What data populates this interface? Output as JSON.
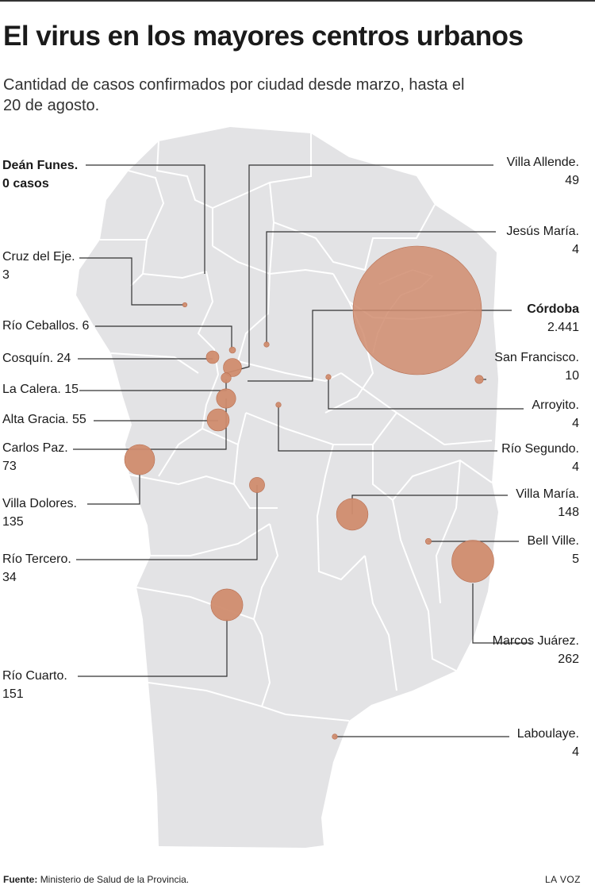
{
  "header": {
    "title": "El virus en los mayores centros urbanos",
    "subtitle": "Cantidad de casos confirmados por ciudad desde marzo, hasta el 20 de agosto."
  },
  "colors": {
    "map_fill": "#e3e3e5",
    "border": "#ffffff",
    "bubble": "#d08c6e",
    "bubble_stroke": "#b86f52",
    "leader": "#333333"
  },
  "cities": [
    {
      "id": "dean-funes",
      "name": "Deán Funes.",
      "value_text": "0 casos",
      "cases": 0
    },
    {
      "id": "villa-allende",
      "name": "Villa Allende.",
      "value_text": "49",
      "cases": 49
    },
    {
      "id": "cruz-del-eje",
      "name": "Cruz del Eje.",
      "value_text": "3",
      "cases": 3
    },
    {
      "id": "jesus-maria",
      "name": "Jesús María.",
      "value_text": "4",
      "cases": 4
    },
    {
      "id": "cordoba",
      "name": "Córdoba",
      "value_text": "2.441",
      "cases": 2441
    },
    {
      "id": "rio-ceballos",
      "name": "Río Ceballos. 6",
      "value_text": "",
      "cases": 6
    },
    {
      "id": "cosquin",
      "name": "Cosquín. 24",
      "value_text": "",
      "cases": 24
    },
    {
      "id": "san-francisco",
      "name": "San Francisco.",
      "value_text": "10",
      "cases": 10
    },
    {
      "id": "la-calera",
      "name": "La Calera. 15",
      "value_text": "",
      "cases": 15
    },
    {
      "id": "arroyito",
      "name": "Arroyito.",
      "value_text": "4",
      "cases": 4
    },
    {
      "id": "alta-gracia",
      "name": "Alta Gracia. 55",
      "value_text": "",
      "cases": 55
    },
    {
      "id": "carlos-paz",
      "name": "Carlos Paz.",
      "value_text": "73",
      "cases": 73
    },
    {
      "id": "rio-segundo",
      "name": "Río Segundo.",
      "value_text": "4",
      "cases": 4
    },
    {
      "id": "villa-dolores",
      "name": "Villa Dolores.",
      "value_text": "135",
      "cases": 135
    },
    {
      "id": "villa-maria",
      "name": "Villa María.",
      "value_text": "148",
      "cases": 148
    },
    {
      "id": "bell-ville",
      "name": "Bell Ville.",
      "value_text": "5",
      "cases": 5
    },
    {
      "id": "rio-tercero",
      "name": "Río Tercero.",
      "value_text": "34",
      "cases": 34
    },
    {
      "id": "marcos-juarez",
      "name": "Marcos Juárez.",
      "value_text": "262",
      "cases": 262
    },
    {
      "id": "rio-cuarto",
      "name": "Río Cuarto.",
      "value_text": "151",
      "cases": 151
    },
    {
      "id": "laboulaye",
      "name": "Laboulaye.",
      "value_text": "4",
      "cases": 4
    }
  ],
  "footer": {
    "source_label": "Fuente:",
    "source_text": "Ministerio de Salud de la Provincia.",
    "credit": "LA VOZ"
  }
}
